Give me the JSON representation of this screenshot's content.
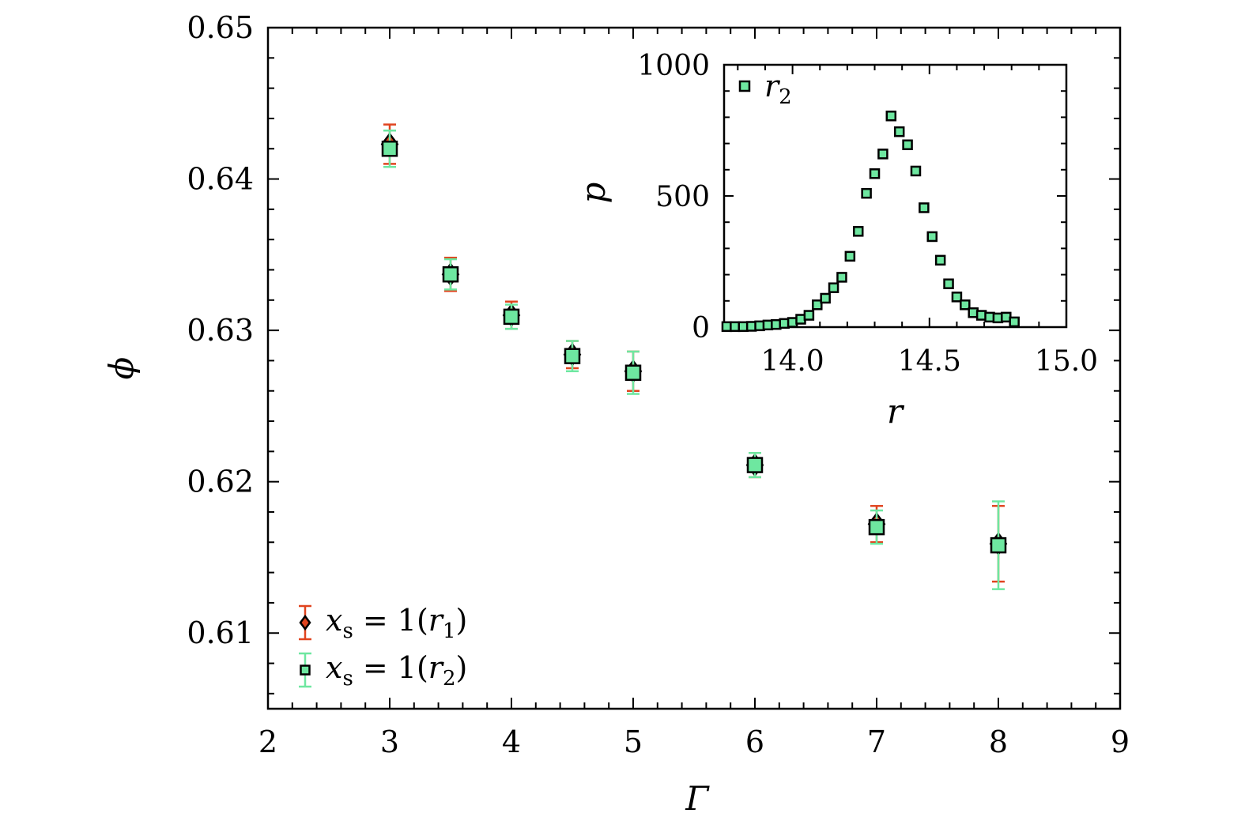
{
  "chart_data": [
    {
      "type": "scatter",
      "title": "",
      "xlabel": "Γ",
      "ylabel": "ϕ",
      "xlim": [
        2,
        9
      ],
      "ylim": [
        0.605,
        0.65
      ],
      "x_ticks": [
        "2",
        "3",
        "4",
        "5",
        "6",
        "7",
        "8",
        "9"
      ],
      "y_ticks": [
        "0.61",
        "0.62",
        "0.63",
        "0.64",
        "0.65"
      ],
      "legend_position": "bottom-left",
      "series": [
        {
          "name": "x_s = 1(r_1)",
          "legend_parts": {
            "var": "x",
            "sub": "s",
            "eq": " = 1(",
            "var2": "r",
            "sub2": "1",
            "close": ")"
          },
          "marker": "diamond",
          "color": "#e0441f",
          "x": [
            3,
            3.5,
            4,
            4.5,
            5,
            6,
            7,
            8
          ],
          "y": [
            0.6423,
            0.6337,
            0.631,
            0.6284,
            0.6273,
            0.6211,
            0.6172,
            0.6159
          ],
          "err_low": [
            0.0013,
            0.0011,
            0.0009,
            0.0009,
            0.0013,
            0.0008,
            0.0012,
            0.0025
          ],
          "err_high": [
            0.0013,
            0.0011,
            0.0009,
            0.0009,
            0.0013,
            0.0008,
            0.0012,
            0.0025
          ]
        },
        {
          "name": "x_s = 1(r_2)",
          "legend_parts": {
            "var": "x",
            "sub": "s",
            "eq": " = 1(",
            "var2": "r",
            "sub2": "2",
            "close": ")"
          },
          "marker": "square",
          "color": "#6ee7a0",
          "x": [
            3,
            3.5,
            4,
            4.5,
            5,
            6,
            7,
            8
          ],
          "y": [
            0.642,
            0.6337,
            0.6309,
            0.6283,
            0.6272,
            0.6211,
            0.617,
            0.6158
          ],
          "err_low": [
            0.0012,
            0.001,
            0.0008,
            0.001,
            0.0014,
            0.0008,
            0.0011,
            0.0029
          ],
          "err_high": [
            0.0012,
            0.001,
            0.0008,
            0.001,
            0.0014,
            0.0008,
            0.0011,
            0.0029
          ]
        }
      ]
    },
    {
      "type": "scatter",
      "title": "",
      "xlabel": "r",
      "ylabel": "p",
      "xlim": [
        13.75,
        15.0
      ],
      "ylim": [
        0,
        1000
      ],
      "x_ticks": [
        "14.0",
        "14.5",
        "15.0"
      ],
      "y_ticks": [
        "0",
        "500",
        "1000"
      ],
      "legend_position": "top-left",
      "series": [
        {
          "name": "r_2",
          "legend_parts": {
            "var": "r",
            "sub": "2"
          },
          "marker": "square",
          "color": "#6ee7a0",
          "x": [
            13.76,
            13.79,
            13.82,
            13.85,
            13.88,
            13.91,
            13.94,
            13.97,
            14.0,
            14.03,
            14.06,
            14.09,
            14.12,
            14.15,
            14.18,
            14.21,
            14.24,
            14.27,
            14.3,
            14.33,
            14.36,
            14.39,
            14.42,
            14.45,
            14.48,
            14.51,
            14.54,
            14.57,
            14.6,
            14.63,
            14.66,
            14.69,
            14.72,
            14.75,
            14.78,
            14.81
          ],
          "y": [
            2,
            2,
            2,
            3,
            5,
            8,
            10,
            14,
            18,
            30,
            45,
            85,
            110,
            150,
            190,
            270,
            365,
            510,
            585,
            660,
            805,
            745,
            695,
            595,
            455,
            345,
            255,
            165,
            115,
            85,
            55,
            45,
            38,
            35,
            38,
            20
          ]
        }
      ]
    }
  ]
}
